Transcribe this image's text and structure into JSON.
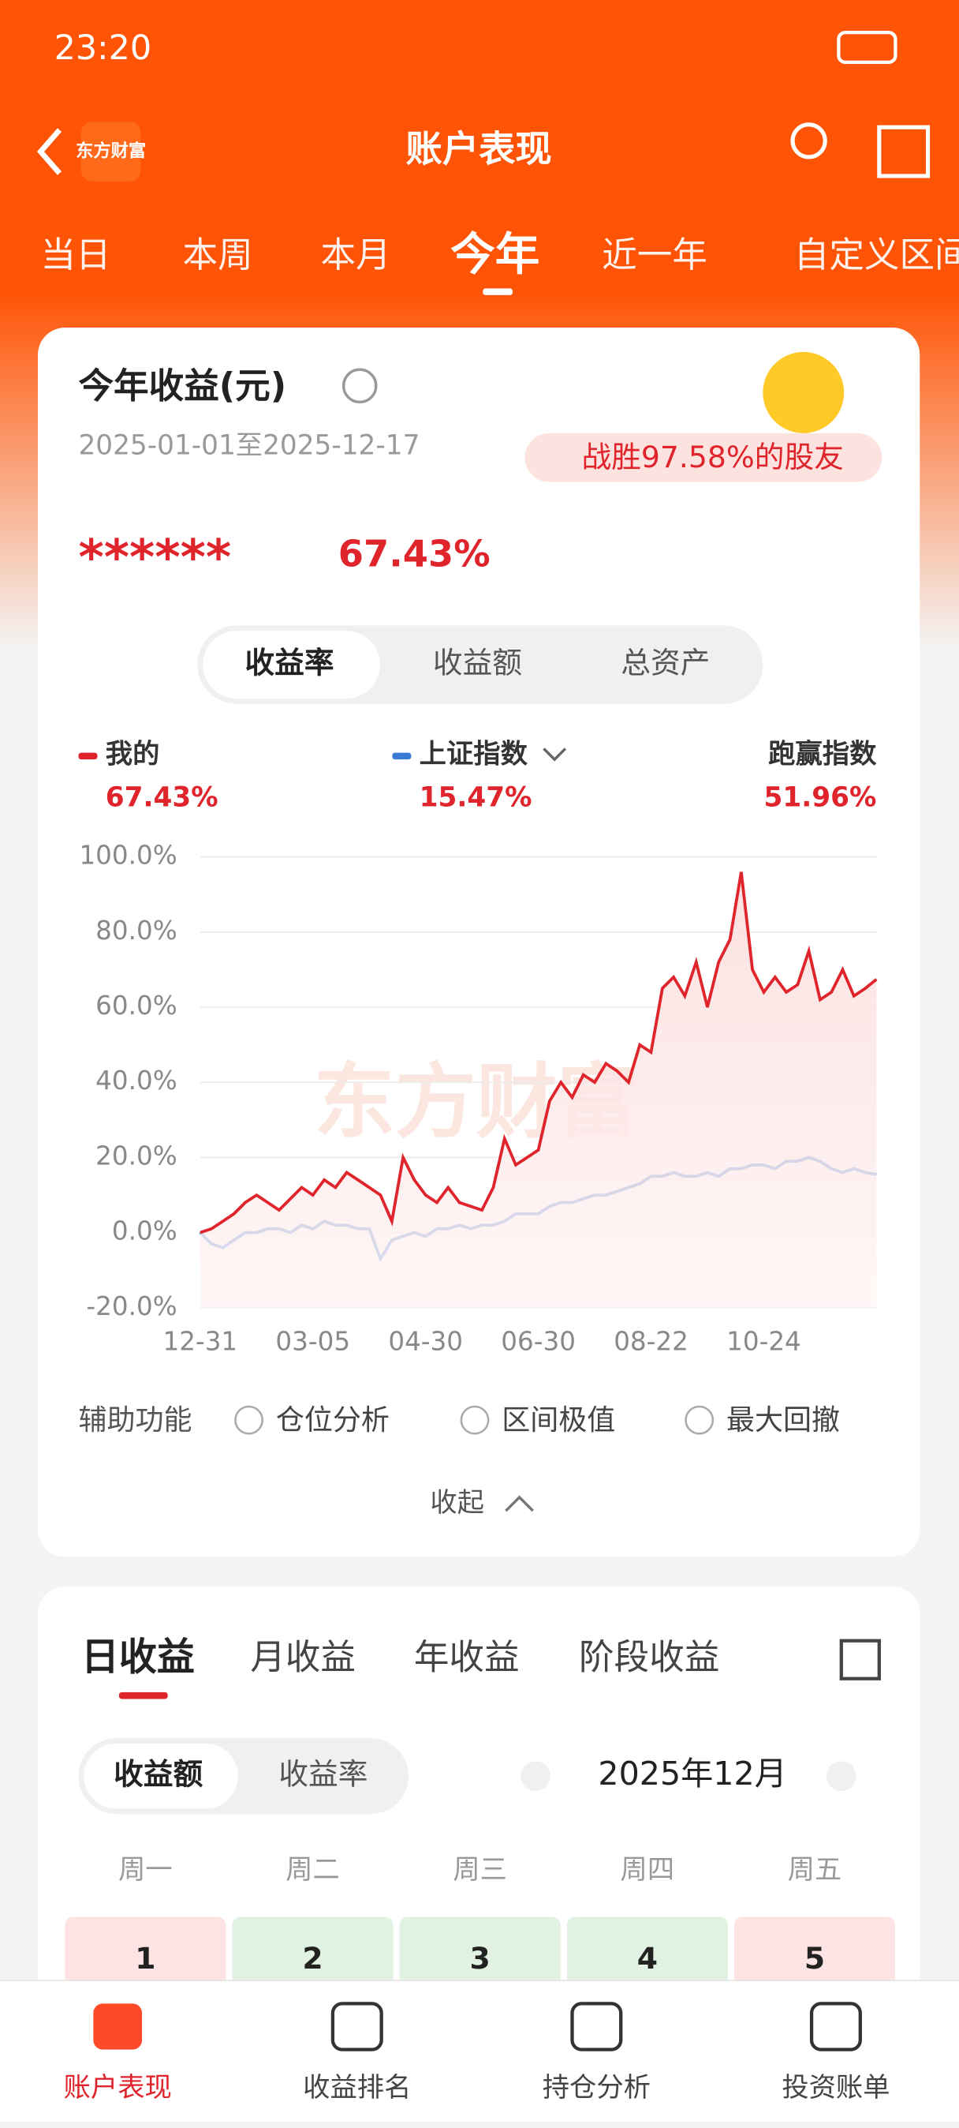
{
  "status_bar": {
    "time": "23:20"
  },
  "header": {
    "title": "账户表现",
    "logo": "东方财富"
  },
  "period_tabs": [
    "当日",
    "本周",
    "本月",
    "今年",
    "近一年",
    "自定义区间"
  ],
  "summary": {
    "title": "今年收益(元)",
    "date_range": "2025-01-01至2025-12-17",
    "badge": "战胜97.58%的股友",
    "amount": "******",
    "rate": "67.43%"
  },
  "metric_tabs": [
    "收益率",
    "收益额",
    "总资产"
  ],
  "chart_data": {
    "type": "line",
    "categories": [
      "12-31",
      null,
      null,
      null,
      null,
      null,
      null,
      null,
      null,
      null,
      "03-05",
      null,
      null,
      null,
      null,
      null,
      null,
      null,
      null,
      null,
      "04-30",
      null,
      null,
      null,
      null,
      null,
      null,
      null,
      null,
      null,
      "06-30",
      null,
      null,
      null,
      null,
      null,
      null,
      null,
      null,
      null,
      "08-22",
      null,
      null,
      null,
      null,
      null,
      null,
      null,
      null,
      null,
      "10-24",
      null,
      null,
      null,
      null,
      null,
      null,
      null,
      null,
      null,
      null
    ],
    "series": [
      {
        "name": "我的",
        "color": "#e0242c",
        "last_label": "67.43%",
        "values": [
          0,
          1,
          3,
          5,
          8,
          10,
          8,
          6,
          9,
          12,
          10,
          14,
          12,
          16,
          14,
          12,
          10,
          3,
          20,
          14,
          10,
          8,
          12,
          8,
          7,
          6,
          12,
          25,
          18,
          20,
          22,
          35,
          40,
          36,
          42,
          40,
          45,
          43,
          40,
          50,
          48,
          65,
          68,
          63,
          72,
          60,
          72,
          78,
          96,
          70,
          64,
          68,
          64,
          66,
          75,
          62,
          64,
          70,
          63,
          65,
          67.43
        ]
      },
      {
        "name": "上证指数",
        "color": "#3a7bd5",
        "last_label": "15.47%",
        "values": [
          0,
          -3,
          -4,
          -2,
          0,
          0,
          1,
          1,
          0,
          2,
          1,
          3,
          2,
          2,
          1,
          1,
          -7,
          -2,
          -1,
          0,
          -1,
          1,
          1,
          2,
          1,
          2,
          2,
          3,
          5,
          5,
          5,
          7,
          8,
          8,
          9,
          10,
          10,
          11,
          12,
          13,
          15,
          15,
          16,
          15,
          15,
          16,
          15,
          17,
          17,
          18,
          18,
          17,
          19,
          19,
          20,
          19,
          17,
          16,
          17,
          16,
          15.47
        ]
      }
    ],
    "excess": {
      "name": "跑赢指数",
      "label": "51.96%"
    },
    "ylim": [
      -20,
      100
    ],
    "yticks": [
      {
        "value": -20,
        "label": "-20.0%"
      },
      {
        "value": 0,
        "label": "0.0%"
      },
      {
        "value": 20,
        "label": "20.0%"
      },
      {
        "value": 40,
        "label": "40.0%"
      },
      {
        "value": 60,
        "label": "60.0%"
      },
      {
        "value": 80,
        "label": "80.0%"
      },
      {
        "value": 100,
        "label": "100.0%"
      }
    ],
    "grid": true,
    "watermark": "东方财富"
  },
  "tools": {
    "label": "辅助功能",
    "options": [
      "仓位分析",
      "区间极值",
      "最大回撤"
    ],
    "collapse": "收起"
  },
  "income_tabs": [
    "日收益",
    "月收益",
    "年收益",
    "阶段收益"
  ],
  "income_toggle": [
    "收益额",
    "收益率"
  ],
  "month": "2025年12月",
  "calendar": {
    "weekdays": [
      "周一",
      "周二",
      "周三",
      "周四",
      "周五"
    ],
    "days": [
      "1",
      "2",
      "3",
      "4",
      "5"
    ]
  },
  "bottom_nav": [
    "账户表现",
    "收益排名",
    "持仓分析",
    "投资账单"
  ]
}
